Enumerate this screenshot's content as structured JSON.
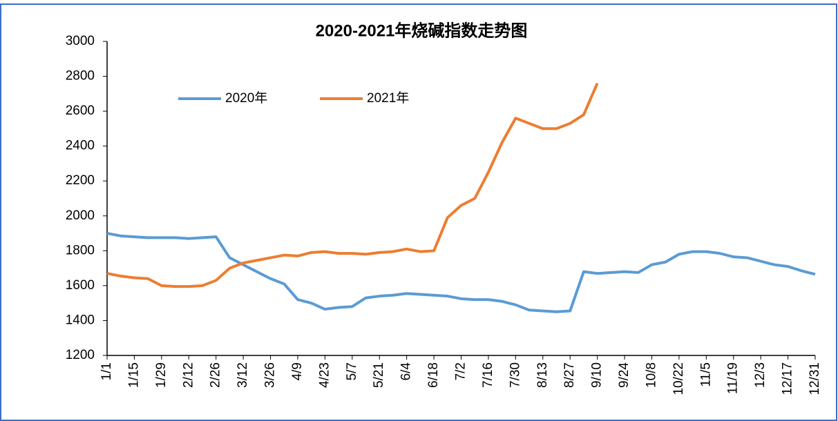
{
  "chart_data": {
    "type": "line",
    "title": "2020-2021年烧碱指数走势图",
    "categories": [
      "1/1",
      null,
      "1/15",
      null,
      "1/29",
      null,
      "2/12",
      null,
      "2/26",
      null,
      "3/12",
      null,
      "3/26",
      null,
      "4/9",
      null,
      "4/23",
      null,
      "5/7",
      null,
      "5/21",
      null,
      "6/4",
      null,
      "6/18",
      null,
      "7/2",
      null,
      "7/16",
      null,
      "7/30",
      null,
      "8/13",
      null,
      "8/27",
      null,
      "9/10",
      null,
      "9/24",
      null,
      "10/8",
      null,
      "10/22",
      null,
      "11/5",
      null,
      "11/19",
      null,
      "12/3",
      null,
      "12/17",
      null,
      "12/31"
    ],
    "series": [
      {
        "name": "2020年",
        "color": "#5b9bd5",
        "values": [
          1900,
          1885,
          1880,
          1875,
          1875,
          1875,
          1870,
          1875,
          1880,
          1760,
          1720,
          1680,
          1640,
          1610,
          1520,
          1500,
          1465,
          1475,
          1480,
          1530,
          1540,
          1545,
          1555,
          1550,
          1545,
          1540,
          1525,
          1520,
          1520,
          1510,
          1490,
          1460,
          1455,
          1450,
          1455,
          1680,
          1670,
          1675,
          1680,
          1675,
          1720,
          1735,
          1780,
          1795,
          1795,
          1785,
          1765,
          1760,
          1740,
          1720,
          1710,
          1685,
          1665
        ]
      },
      {
        "name": "2021年",
        "color": "#ed7d31",
        "values": [
          1670,
          1655,
          1645,
          1640,
          1600,
          1595,
          1595,
          1600,
          1630,
          1700,
          1730,
          1745,
          1760,
          1775,
          1770,
          1790,
          1795,
          1785,
          1785,
          1780,
          1790,
          1795,
          1810,
          1795,
          1800,
          1990,
          2060,
          2100,
          2250,
          2420,
          2560,
          2530,
          2500,
          2500,
          2530,
          2580,
          2760,
          null,
          null,
          null,
          null,
          null,
          null,
          null,
          null,
          null,
          null,
          null,
          null,
          null,
          null,
          null,
          null
        ]
      }
    ],
    "ylim": [
      1200,
      3000
    ],
    "yticks": [
      1200,
      1400,
      1600,
      1800,
      2000,
      2200,
      2400,
      2600,
      2800,
      3000
    ]
  }
}
